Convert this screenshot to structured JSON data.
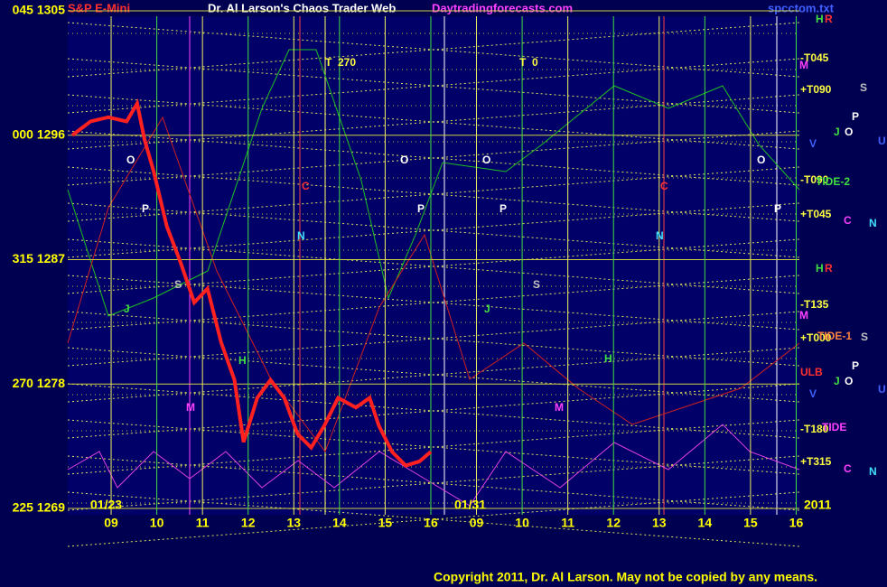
{
  "chart_data": {
    "type": "line",
    "header": {
      "symbol": "S&P E-Mini",
      "title": "Dr. Al Larson's Chaos Trader Web",
      "site": "Daytradingforecasts.com",
      "file": "spcctom.txt"
    },
    "ylim": [
      1269,
      1305
    ],
    "yticks": [
      {
        "value": 1305,
        "label": "045 1305"
      },
      {
        "value": 1296,
        "label": "000 1296"
      },
      {
        "value": 1287,
        "label": "315 1287"
      },
      {
        "value": 1278,
        "label": "270 1278"
      },
      {
        "value": 1269,
        "label": "225 1269"
      }
    ],
    "xlim": [
      -0.95,
      15.07
    ],
    "xticks": [
      {
        "value": 0,
        "label": "09"
      },
      {
        "value": 1,
        "label": "10"
      },
      {
        "value": 2,
        "label": "11"
      },
      {
        "value": 3,
        "label": "12"
      },
      {
        "value": 4,
        "label": "13"
      },
      {
        "value": 5,
        "label": "14"
      },
      {
        "value": 6,
        "label": "15"
      },
      {
        "value": 7,
        "label": "16"
      },
      {
        "value": 8,
        "label": "09"
      },
      {
        "value": 9,
        "label": "10"
      },
      {
        "value": 10,
        "label": "11"
      },
      {
        "value": 11,
        "label": "12"
      },
      {
        "value": 12,
        "label": "13"
      },
      {
        "value": 13,
        "label": "14"
      },
      {
        "value": 14,
        "label": "15"
      },
      {
        "value": 15,
        "label": "16"
      }
    ],
    "dates": [
      "01/23",
      "01/31",
      "2011"
    ],
    "series": [
      {
        "color": "#ff2020",
        "x": [
          -0.85,
          -0.45,
          -0.06,
          0.34,
          0.57,
          0.73,
          0.93,
          1.22,
          1.52,
          1.82,
          2.11,
          2.41,
          2.7,
          2.9,
          3.2,
          3.49,
          3.79,
          4.08,
          4.38,
          4.67,
          4.97,
          5.36,
          5.66,
          5.86,
          6.15,
          6.45,
          6.75,
          7.0
        ],
        "values": [
          1296,
          1297,
          1297.3,
          1297,
          1298.3,
          1295.7,
          1293.4,
          1289.4,
          1286.8,
          1283.9,
          1284.9,
          1281,
          1278.3,
          1273.8,
          1277,
          1278.3,
          1277,
          1274.4,
          1273.4,
          1275,
          1277,
          1276.3,
          1277,
          1275,
          1273.1,
          1272.1,
          1272.4,
          1273.1
        ]
      }
    ],
    "right_labels": [
      "-T045",
      "+T090",
      "-T090",
      "+T045",
      "-T135",
      "+T000",
      "-T180",
      "+T315"
    ],
    "side_markers": [
      "TIDE-2",
      "TIDE-1",
      "TIDE",
      "ULB",
      "S",
      "S",
      "P",
      "P",
      "O",
      "O",
      "J",
      "J",
      "U",
      "U",
      "V",
      "V",
      "C",
      "C",
      "N",
      "N",
      "H",
      "R",
      "H",
      "R",
      "M",
      "M"
    ],
    "plot_markers": [
      "O",
      "O",
      "O",
      "O",
      "P",
      "P",
      "P",
      "P",
      "S",
      "S",
      "N",
      "N",
      "C",
      "C",
      "J",
      "J",
      "H",
      "H",
      "M",
      "M",
      "T  270",
      "T  0"
    ],
    "copyright": "Copyright 2011, Dr. Al Larson. May not be copied by any means."
  }
}
